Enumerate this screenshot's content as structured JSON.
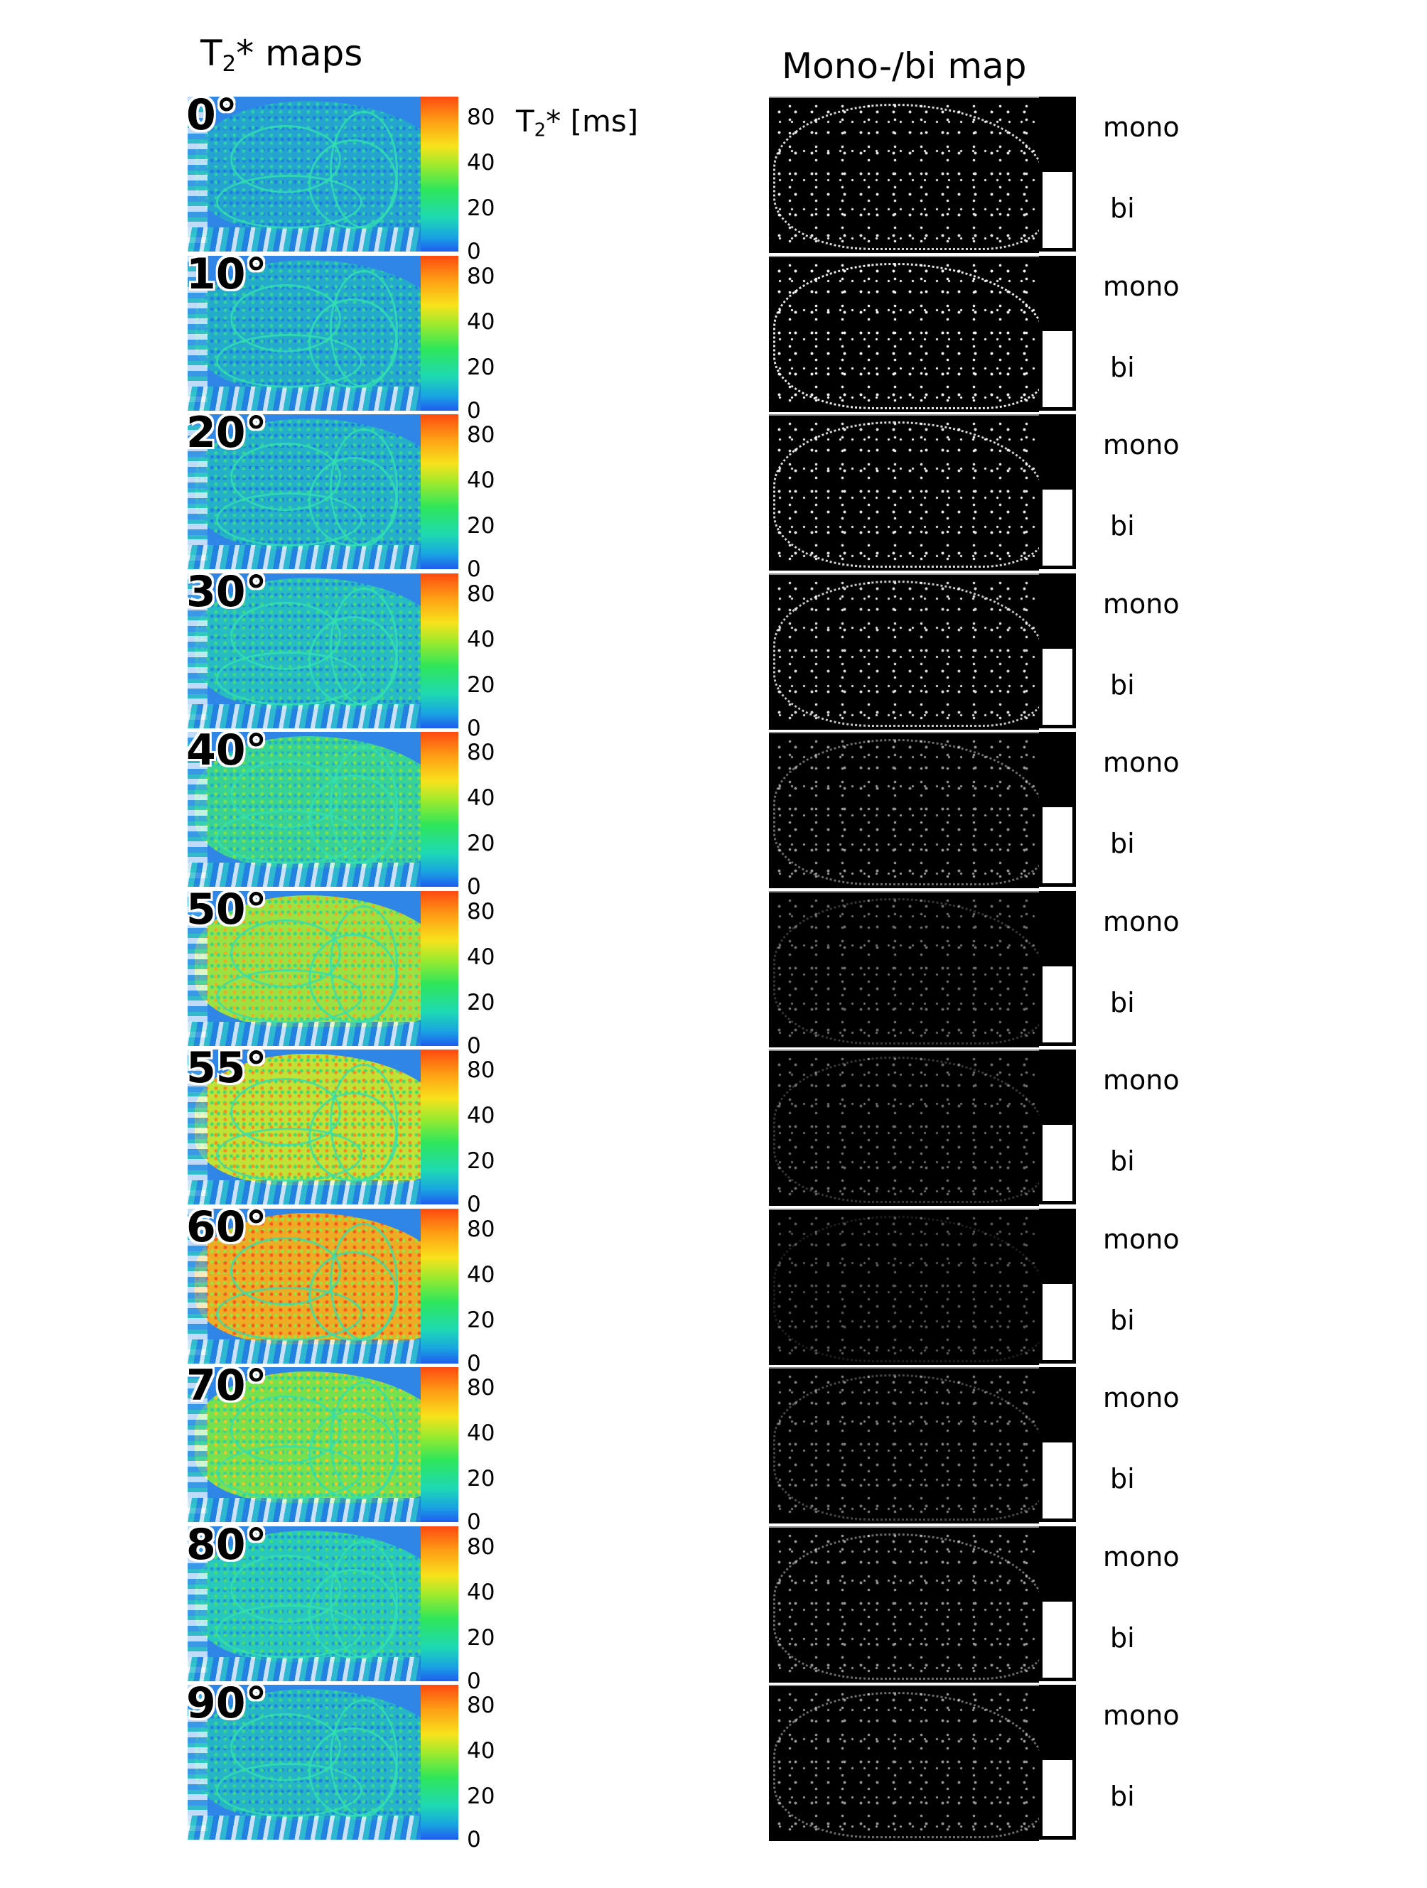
{
  "titles": {
    "left_main": "T",
    "left_sub": "2",
    "left_rest": "* maps",
    "right": "Mono-/bi map",
    "unit_main": "T",
    "unit_sub": "2",
    "unit_rest": "* [ms]"
  },
  "colorbar_ticks": [
    "80",
    "40",
    "20",
    "0"
  ],
  "legend": {
    "mono": "mono",
    "bi": "bi"
  },
  "rows": [
    {
      "angle": "0°",
      "t2_level": 0.15,
      "mono_density": 0.6
    },
    {
      "angle": "10°",
      "t2_level": 0.18,
      "mono_density": 0.65
    },
    {
      "angle": "20°",
      "t2_level": 0.2,
      "mono_density": 0.6
    },
    {
      "angle": "30°",
      "t2_level": 0.25,
      "mono_density": 0.55
    },
    {
      "angle": "40°",
      "t2_level": 0.4,
      "mono_density": 0.3
    },
    {
      "angle": "50°",
      "t2_level": 0.65,
      "mono_density": 0.15
    },
    {
      "angle": "55°",
      "t2_level": 0.7,
      "mono_density": 0.15
    },
    {
      "angle": "60°",
      "t2_level": 0.85,
      "mono_density": 0.08
    },
    {
      "angle": "70°",
      "t2_level": 0.6,
      "mono_density": 0.2
    },
    {
      "angle": "80°",
      "t2_level": 0.3,
      "mono_density": 0.3
    },
    {
      "angle": "90°",
      "t2_level": 0.22,
      "mono_density": 0.3
    }
  ]
}
